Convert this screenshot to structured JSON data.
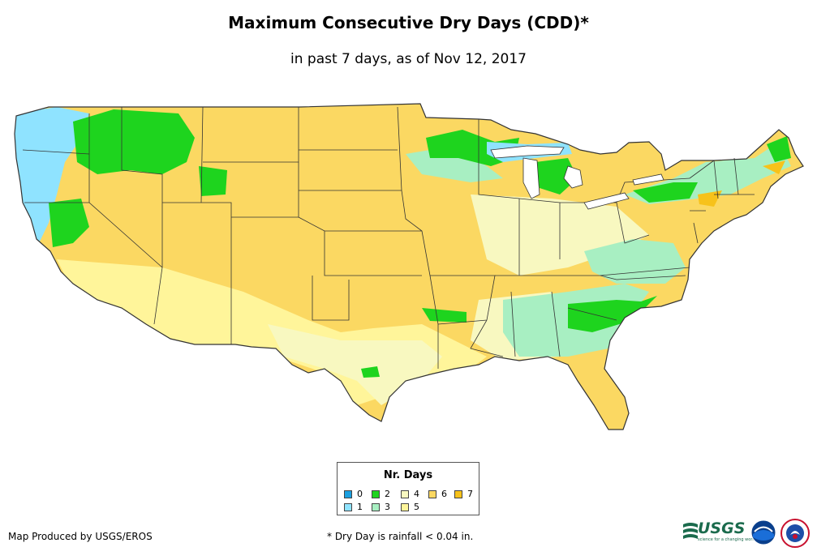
{
  "header": {
    "title": "Maximum Consecutive Dry Days (CDD)*",
    "subtitle": "in past 7 days, as of Nov 12, 2017"
  },
  "legend": {
    "title": "Nr. Days",
    "items": [
      {
        "label": "0",
        "color": "#1a9fe0"
      },
      {
        "label": "1",
        "color": "#8fe3ff"
      },
      {
        "label": "2",
        "color": "#1ed41e"
      },
      {
        "label": "3",
        "color": "#a8efc2"
      },
      {
        "label": "4",
        "color": "#f8f8c0"
      },
      {
        "label": "5",
        "color": "#fff59a"
      },
      {
        "label": "6",
        "color": "#fbd862"
      },
      {
        "label": "7",
        "color": "#f7c21a"
      }
    ]
  },
  "footer": {
    "credit": "Map Produced by USGS/EROS",
    "note": "* Dry Day is rainfall < 0.04 in."
  },
  "logos": {
    "usgs": "USGS",
    "usgs_tagline": "science for a changing world",
    "noaa": "noaa",
    "nws": "NWS"
  },
  "colors": {
    "water": "#ffffff",
    "border": "#333333"
  }
}
